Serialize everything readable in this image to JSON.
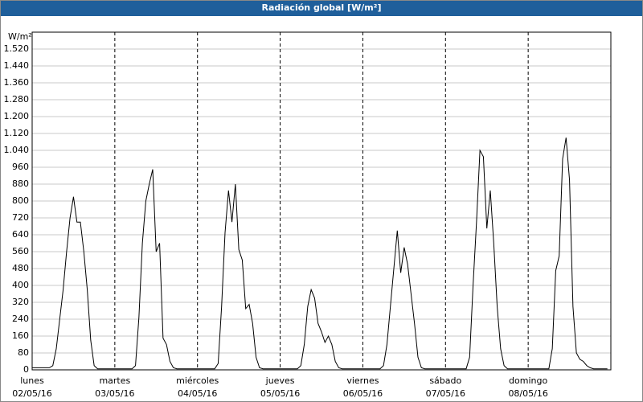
{
  "chart_data": {
    "type": "line",
    "title": "Radiación global [W/m²]",
    "y_label": "W/m²",
    "days": [
      {
        "name": "lunes",
        "date": "02/05/16"
      },
      {
        "name": "martes",
        "date": "03/05/16"
      },
      {
        "name": "miércoles",
        "date": "04/05/16"
      },
      {
        "name": "jueves",
        "date": "05/05/16"
      },
      {
        "name": "viernes",
        "date": "06/05/16"
      },
      {
        "name": "sábado",
        "date": "07/05/16"
      },
      {
        "name": "domingo",
        "date": "08/05/16"
      }
    ],
    "color": "#000000",
    "values": [
      10,
      10,
      10,
      10,
      10,
      10,
      20,
      100,
      240,
      380,
      560,
      720,
      820,
      700,
      700,
      560,
      380,
      140,
      20,
      5,
      5,
      5,
      5,
      5,
      5,
      5,
      5,
      5,
      5,
      5,
      20,
      250,
      600,
      800,
      880,
      950,
      560,
      600,
      150,
      120,
      40,
      10,
      5,
      5,
      5,
      5,
      5,
      5,
      5,
      5,
      5,
      5,
      5,
      5,
      30,
      300,
      650,
      850,
      700,
      880,
      570,
      520,
      290,
      310,
      220,
      60,
      10,
      5,
      5,
      5,
      5,
      5,
      5,
      5,
      5,
      5,
      5,
      5,
      20,
      120,
      300,
      380,
      340,
      220,
      180,
      130,
      160,
      120,
      40,
      10,
      5,
      5,
      5,
      5,
      5,
      5,
      5,
      5,
      5,
      5,
      5,
      5,
      20,
      120,
      300,
      480,
      660,
      460,
      580,
      500,
      360,
      220,
      60,
      10,
      5,
      5,
      5,
      5,
      5,
      5,
      5,
      5,
      5,
      5,
      5,
      5,
      5,
      60,
      400,
      700,
      1040,
      1010,
      670,
      850,
      600,
      300,
      100,
      20,
      5,
      5,
      5,
      5,
      5,
      5,
      5,
      5,
      5,
      5,
      5,
      5,
      5,
      100,
      470,
      540,
      1000,
      1100,
      900,
      300,
      80,
      50,
      40,
      20,
      10,
      5,
      5,
      5,
      5,
      5
    ],
    "ylim": [
      0,
      1600
    ],
    "yticks": [
      0,
      80,
      160,
      240,
      320,
      400,
      480,
      560,
      640,
      720,
      800,
      880,
      960,
      {
        "value": 1040,
        "label": "1.040"
      },
      {
        "value": 1120,
        "label": "1.120"
      },
      {
        "value": 1200,
        "label": "1.200"
      },
      {
        "value": 1280,
        "label": "1.280"
      },
      {
        "value": 1360,
        "label": "1.360"
      },
      {
        "value": 1440,
        "label": "1.440"
      },
      {
        "value": 1520,
        "label": "1.520"
      }
    ],
    "grid": true
  }
}
